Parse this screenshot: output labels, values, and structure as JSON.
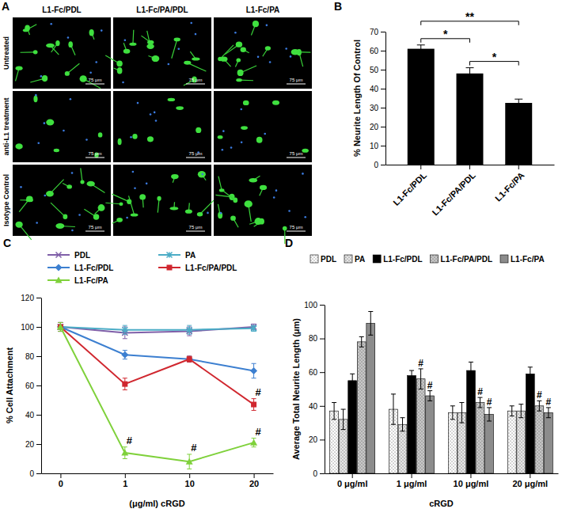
{
  "image_panel": {
    "title": "A",
    "columns": [
      "L1-Fc/PDL",
      "L1-Fc/PA/PDL",
      "L1-Fc/PA"
    ],
    "rows": [
      "Untreated",
      "anti-L1 treatment",
      "Isotype Control"
    ],
    "scale_bar": "75 μm"
  },
  "chart_data": [
    {
      "type": "bar",
      "title": "B",
      "y_label": "% Neurite Length Of Control",
      "categories": [
        "L1-Fc/PDL",
        "L1-Fc/PA/PDL",
        "L1-Fc/PA"
      ],
      "values": [
        61,
        48,
        32.5
      ],
      "errors": [
        2,
        3,
        2
      ],
      "color": "#000000",
      "ylim": [
        0,
        70
      ],
      "yticks": [
        0,
        10,
        20,
        30,
        40,
        50,
        60,
        70
      ],
      "annotations": [
        {
          "text": "*",
          "from": 0,
          "to": 1
        },
        {
          "text": "**",
          "from": 0,
          "to": 2
        },
        {
          "text": "*",
          "from": 1,
          "to": 2
        }
      ]
    },
    {
      "type": "line",
      "title": "C",
      "x_label": "(μg/ml) cRGD",
      "y_label": "% Cell Attachment",
      "categories": [
        "0",
        "1",
        "10",
        "20"
      ],
      "series": [
        {
          "name": "PDL",
          "color": "#7f5fa8",
          "marker": "x",
          "values": [
            100,
            96,
            97,
            100
          ],
          "errors": [
            3,
            4,
            3,
            2
          ]
        },
        {
          "name": "PA",
          "color": "#4bacc6",
          "marker": "asterisk",
          "values": [
            100,
            98,
            98,
            99
          ],
          "errors": [
            3,
            3,
            3,
            2
          ]
        },
        {
          "name": "L1-Fc/PDL",
          "color": "#3c7fd0",
          "marker": "diamond",
          "values": [
            100,
            81,
            78,
            70
          ],
          "errors": [
            3,
            3,
            2,
            5
          ]
        },
        {
          "name": "L1-Fc/PA/PDL",
          "color": "#d0272f",
          "marker": "square",
          "values": [
            100,
            61,
            78,
            47
          ],
          "errors": [
            3,
            4,
            2,
            4
          ]
        },
        {
          "name": "L1-Fc/PA",
          "color": "#7fd13b",
          "marker": "triangle",
          "values": [
            100,
            14,
            8,
            21
          ],
          "errors": [
            3,
            4,
            5,
            3
          ]
        }
      ],
      "ylim": [
        0,
        120
      ],
      "yticks": [
        0,
        20,
        40,
        60,
        80,
        100,
        120
      ],
      "legend": "top",
      "annotations": [
        {
          "text": "#",
          "series": 4,
          "index": 1
        },
        {
          "text": "#",
          "series": 4,
          "index": 2
        },
        {
          "text": "#",
          "series": 4,
          "index": 3
        },
        {
          "text": "#",
          "series": 3,
          "index": 3
        }
      ]
    },
    {
      "type": "bar",
      "title": "D",
      "x_label": "cRGD",
      "y_label": "Average Total Neurite Length (μm)",
      "categories": [
        "0 μg/ml",
        "1 μg/ml",
        "10 μg/ml",
        "20 μg/ml"
      ],
      "series": [
        {
          "name": "PDL",
          "color": "#ffffff",
          "marker": "dots",
          "values": [
            37,
            38,
            36,
            37
          ],
          "errors": [
            5,
            9,
            4,
            3
          ]
        },
        {
          "name": "PA",
          "color": "#e6e6e6",
          "marker": "dots",
          "values": [
            32,
            29,
            36,
            37
          ],
          "errors": [
            6,
            4,
            6,
            4
          ]
        },
        {
          "name": "L1-Fc/PDL",
          "color": "#000000",
          "values": [
            55,
            58,
            61,
            59
          ],
          "errors": [
            4,
            3,
            5,
            4
          ]
        },
        {
          "name": "L1-Fc/PA/PDL",
          "color": "#c8c8c8",
          "marker": "dots",
          "values": [
            78,
            56,
            42,
            40
          ],
          "errors": [
            3,
            6,
            3,
            3
          ]
        },
        {
          "name": "L1-Fc/PA",
          "color": "#8c8c8c",
          "values": [
            89,
            46,
            35,
            36
          ],
          "errors": [
            7,
            3,
            4,
            3
          ]
        }
      ],
      "ylim": [
        0,
        100
      ],
      "yticks": [
        0,
        20,
        40,
        60,
        80,
        100
      ],
      "legend": "top",
      "annotations": [
        {
          "text": "#",
          "series": 3,
          "index": 1
        },
        {
          "text": "#",
          "series": 3,
          "index": 2
        },
        {
          "text": "#",
          "series": 3,
          "index": 3
        },
        {
          "text": "#",
          "series": 4,
          "index": 1
        },
        {
          "text": "#",
          "series": 4,
          "index": 2
        },
        {
          "text": "#",
          "series": 4,
          "index": 3
        }
      ]
    }
  ]
}
